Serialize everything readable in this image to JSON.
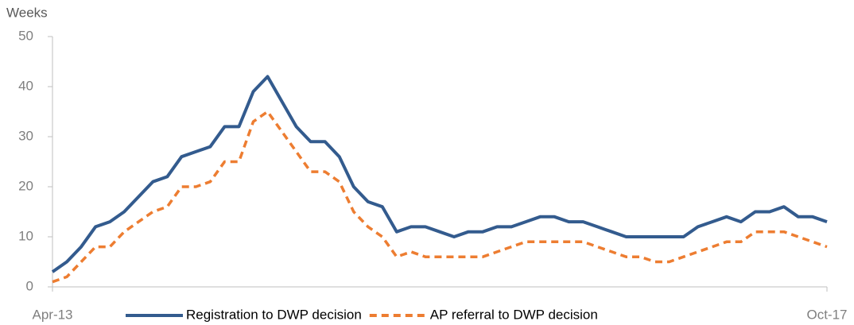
{
  "chart_data": {
    "type": "line",
    "y_label": "Weeks",
    "categories": [
      "Apr-13",
      null,
      null,
      null,
      null,
      null,
      null,
      null,
      null,
      null,
      null,
      null,
      null,
      null,
      null,
      null,
      null,
      null,
      null,
      null,
      null,
      null,
      null,
      null,
      null,
      null,
      null,
      null,
      null,
      null,
      null,
      null,
      null,
      null,
      null,
      null,
      null,
      null,
      null,
      null,
      null,
      null,
      null,
      null,
      null,
      null,
      null,
      null,
      null,
      null,
      null,
      null,
      null,
      null,
      "Oct-17"
    ],
    "series": [
      {
        "name": "Registration to DWP decision",
        "color": "#335b8e",
        "dash": false,
        "values": [
          3,
          5,
          8,
          12,
          13,
          15,
          18,
          21,
          22,
          26,
          27,
          28,
          32,
          32,
          39,
          42,
          37,
          32,
          29,
          29,
          26,
          20,
          17,
          16,
          11,
          12,
          12,
          11,
          10,
          11,
          11,
          12,
          12,
          13,
          14,
          14,
          13,
          13,
          12,
          11,
          10,
          10,
          10,
          10,
          10,
          12,
          13,
          14,
          13,
          15,
          15,
          16,
          14,
          14,
          13
        ]
      },
      {
        "name": "AP referral to DWP decision",
        "color": "#ed7d31",
        "dash": true,
        "values": [
          1,
          2,
          5,
          8,
          8,
          11,
          13,
          15,
          16,
          20,
          20,
          21,
          25,
          25,
          33,
          35,
          31,
          27,
          23,
          23,
          21,
          15,
          12,
          10,
          6,
          7,
          6,
          6,
          6,
          6,
          6,
          7,
          8,
          9,
          9,
          9,
          9,
          9,
          8,
          7,
          6,
          6,
          5,
          5,
          6,
          7,
          8,
          9,
          9,
          11,
          11,
          11,
          10,
          9,
          8
        ]
      }
    ],
    "ylim": [
      0,
      50
    ],
    "yticks": [
      0,
      10,
      20,
      30,
      40,
      50
    ],
    "grid": false,
    "legend": "bottom"
  }
}
